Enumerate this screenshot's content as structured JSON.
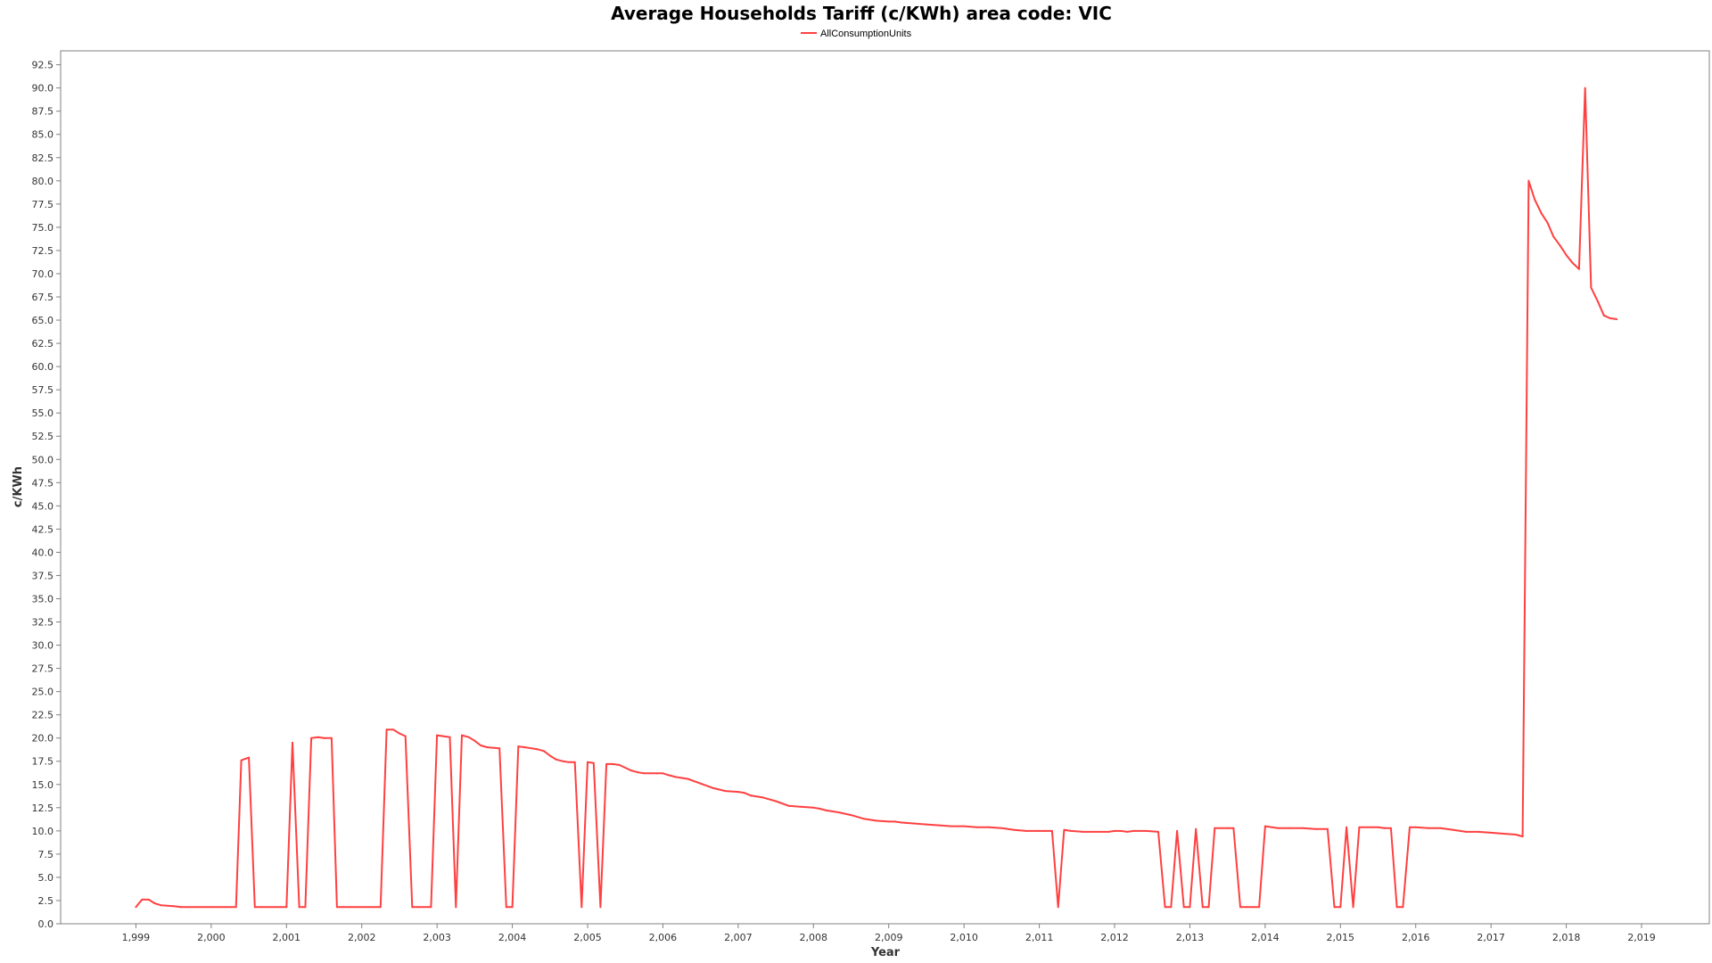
{
  "chart_data": {
    "type": "line",
    "title": "Average Households Tariff (c/KWh) area code: VIC",
    "xlabel": "Year",
    "ylabel": "c/KWh",
    "xlim": [
      1998.0,
      2019.9
    ],
    "ylim": [
      0,
      94
    ],
    "yticks": [
      "0.0",
      "2.5",
      "5.0",
      "7.5",
      "10.0",
      "12.5",
      "15.0",
      "17.5",
      "20.0",
      "22.5",
      "25.0",
      "27.5",
      "30.0",
      "32.5",
      "35.0",
      "37.5",
      "40.0",
      "42.5",
      "45.0",
      "47.5",
      "50.0",
      "52.5",
      "55.0",
      "57.5",
      "60.0",
      "62.5",
      "65.0",
      "67.5",
      "70.0",
      "72.5",
      "75.0",
      "77.5",
      "80.0",
      "82.5",
      "85.0",
      "87.5",
      "90.0",
      "92.5"
    ],
    "xticks": [
      "1,999",
      "2,000",
      "2,001",
      "2,002",
      "2,003",
      "2,004",
      "2,005",
      "2,006",
      "2,007",
      "2,008",
      "2,009",
      "2,010",
      "2,011",
      "2,012",
      "2,013",
      "2,014",
      "2,015",
      "2,016",
      "2,017",
      "2,018",
      "2,019"
    ],
    "grid": false,
    "legend": "top",
    "color": "#ff4040",
    "series": [
      {
        "name": "AllConsumptionUnits",
        "points": [
          [
            1999.0,
            1.8
          ],
          [
            1999.08,
            2.6
          ],
          [
            1999.17,
            2.6
          ],
          [
            1999.25,
            2.2
          ],
          [
            1999.33,
            2.0
          ],
          [
            1999.5,
            1.9
          ],
          [
            1999.6,
            1.8
          ],
          [
            2000.0,
            1.8
          ],
          [
            2000.33,
            1.8
          ],
          [
            2000.4,
            17.6
          ],
          [
            2000.5,
            17.9
          ],
          [
            2000.58,
            1.8
          ],
          [
            2000.67,
            1.8
          ],
          [
            2001.0,
            1.8
          ],
          [
            2001.08,
            19.5
          ],
          [
            2001.17,
            1.8
          ],
          [
            2001.25,
            1.8
          ],
          [
            2001.33,
            20.0
          ],
          [
            2001.42,
            20.1
          ],
          [
            2001.5,
            20.0
          ],
          [
            2001.6,
            20.0
          ],
          [
            2001.67,
            1.8
          ],
          [
            2001.75,
            1.8
          ],
          [
            2002.25,
            1.8
          ],
          [
            2002.33,
            20.9
          ],
          [
            2002.42,
            20.9
          ],
          [
            2002.5,
            20.5
          ],
          [
            2002.58,
            20.2
          ],
          [
            2002.67,
            1.8
          ],
          [
            2002.75,
            1.8
          ],
          [
            2002.92,
            1.8
          ],
          [
            2003.0,
            20.3
          ],
          [
            2003.08,
            20.2
          ],
          [
            2003.17,
            20.1
          ],
          [
            2003.25,
            1.8
          ],
          [
            2003.33,
            20.3
          ],
          [
            2003.42,
            20.1
          ],
          [
            2003.5,
            19.7
          ],
          [
            2003.58,
            19.2
          ],
          [
            2003.67,
            19.0
          ],
          [
            2003.83,
            18.9
          ],
          [
            2003.92,
            1.8
          ],
          [
            2004.0,
            1.8
          ],
          [
            2004.08,
            19.1
          ],
          [
            2004.17,
            19.0
          ],
          [
            2004.25,
            18.9
          ],
          [
            2004.33,
            18.8
          ],
          [
            2004.42,
            18.6
          ],
          [
            2004.5,
            18.1
          ],
          [
            2004.58,
            17.7
          ],
          [
            2004.67,
            17.5
          ],
          [
            2004.75,
            17.4
          ],
          [
            2004.83,
            17.4
          ],
          [
            2004.92,
            1.8
          ],
          [
            2005.0,
            17.4
          ],
          [
            2005.08,
            17.3
          ],
          [
            2005.17,
            1.8
          ],
          [
            2005.25,
            17.2
          ],
          [
            2005.33,
            17.2
          ],
          [
            2005.42,
            17.1
          ],
          [
            2005.5,
            16.8
          ],
          [
            2005.58,
            16.5
          ],
          [
            2005.67,
            16.3
          ],
          [
            2005.75,
            16.2
          ],
          [
            2005.92,
            16.2
          ],
          [
            2006.0,
            16.2
          ],
          [
            2006.08,
            16.0
          ],
          [
            2006.17,
            15.8
          ],
          [
            2006.33,
            15.6
          ],
          [
            2006.5,
            15.1
          ],
          [
            2006.67,
            14.6
          ],
          [
            2006.83,
            14.3
          ],
          [
            2007.0,
            14.2
          ],
          [
            2007.08,
            14.1
          ],
          [
            2007.17,
            13.8
          ],
          [
            2007.33,
            13.6
          ],
          [
            2007.5,
            13.2
          ],
          [
            2007.67,
            12.7
          ],
          [
            2007.83,
            12.6
          ],
          [
            2008.0,
            12.5
          ],
          [
            2008.08,
            12.4
          ],
          [
            2008.17,
            12.2
          ],
          [
            2008.33,
            12.0
          ],
          [
            2008.5,
            11.7
          ],
          [
            2008.67,
            11.3
          ],
          [
            2008.83,
            11.1
          ],
          [
            2009.0,
            11.0
          ],
          [
            2009.08,
            11.0
          ],
          [
            2009.17,
            10.9
          ],
          [
            2009.33,
            10.8
          ],
          [
            2009.5,
            10.7
          ],
          [
            2009.67,
            10.6
          ],
          [
            2009.83,
            10.5
          ],
          [
            2010.0,
            10.5
          ],
          [
            2010.17,
            10.4
          ],
          [
            2010.33,
            10.4
          ],
          [
            2010.5,
            10.3
          ],
          [
            2010.67,
            10.1
          ],
          [
            2010.83,
            10.0
          ],
          [
            2011.0,
            10.0
          ],
          [
            2011.08,
            10.0
          ],
          [
            2011.17,
            10.0
          ],
          [
            2011.25,
            1.8
          ],
          [
            2011.33,
            10.1
          ],
          [
            2011.42,
            10.0
          ],
          [
            2011.58,
            9.9
          ],
          [
            2011.75,
            9.9
          ],
          [
            2011.92,
            9.9
          ],
          [
            2012.0,
            10.0
          ],
          [
            2012.08,
            10.0
          ],
          [
            2012.17,
            9.9
          ],
          [
            2012.25,
            10.0
          ],
          [
            2012.42,
            10.0
          ],
          [
            2012.58,
            9.9
          ],
          [
            2012.67,
            1.8
          ],
          [
            2012.75,
            1.8
          ],
          [
            2012.83,
            10.0
          ],
          [
            2012.92,
            1.8
          ],
          [
            2013.0,
            1.8
          ],
          [
            2013.08,
            10.2
          ],
          [
            2013.17,
            1.8
          ],
          [
            2013.25,
            1.8
          ],
          [
            2013.33,
            10.3
          ],
          [
            2013.5,
            10.3
          ],
          [
            2013.58,
            10.3
          ],
          [
            2013.67,
            1.8
          ],
          [
            2013.75,
            1.8
          ],
          [
            2013.92,
            1.8
          ],
          [
            2014.0,
            10.5
          ],
          [
            2014.17,
            10.3
          ],
          [
            2014.33,
            10.3
          ],
          [
            2014.5,
            10.3
          ],
          [
            2014.67,
            10.2
          ],
          [
            2014.83,
            10.2
          ],
          [
            2014.92,
            1.8
          ],
          [
            2015.0,
            1.8
          ],
          [
            2015.08,
            10.4
          ],
          [
            2015.17,
            1.8
          ],
          [
            2015.25,
            10.4
          ],
          [
            2015.42,
            10.4
          ],
          [
            2015.5,
            10.4
          ],
          [
            2015.58,
            10.3
          ],
          [
            2015.67,
            10.3
          ],
          [
            2015.75,
            1.8
          ],
          [
            2015.83,
            1.8
          ],
          [
            2015.92,
            10.4
          ],
          [
            2016.0,
            10.4
          ],
          [
            2016.17,
            10.3
          ],
          [
            2016.33,
            10.3
          ],
          [
            2016.5,
            10.1
          ],
          [
            2016.67,
            9.9
          ],
          [
            2016.83,
            9.9
          ],
          [
            2017.0,
            9.8
          ],
          [
            2017.17,
            9.7
          ],
          [
            2017.33,
            9.6
          ],
          [
            2017.42,
            9.4
          ],
          [
            2017.5,
            80.0
          ],
          [
            2017.58,
            78.0
          ],
          [
            2017.67,
            76.5
          ],
          [
            2017.75,
            75.5
          ],
          [
            2017.83,
            74.0
          ],
          [
            2017.92,
            73.0
          ],
          [
            2018.0,
            72.0
          ],
          [
            2018.08,
            71.2
          ],
          [
            2018.17,
            70.5
          ],
          [
            2018.25,
            90.0
          ],
          [
            2018.33,
            68.5
          ],
          [
            2018.42,
            67.0
          ],
          [
            2018.5,
            65.5
          ],
          [
            2018.58,
            65.2
          ],
          [
            2018.67,
            65.1
          ]
        ]
      }
    ]
  }
}
